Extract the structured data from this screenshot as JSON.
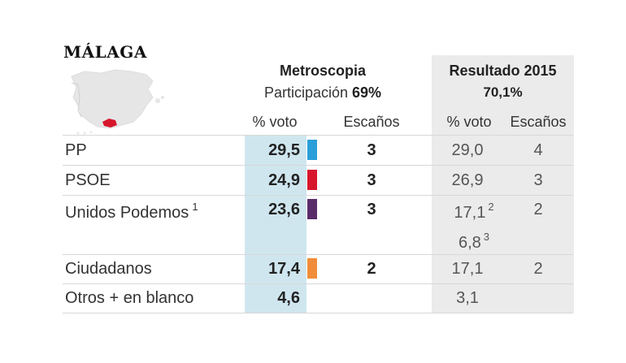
{
  "region": "MÁLAGA",
  "poll": {
    "name": "Metroscopia",
    "participation_label": "Participación",
    "participation_value": "69%"
  },
  "result": {
    "name": "Resultado 2015",
    "participation_value": "70,1%"
  },
  "columns": {
    "vote_pct": "% voto",
    "seats": "Escaños"
  },
  "colors": {
    "pp": "#2a9fd8",
    "psoe": "#d7162c",
    "podemos": "#5a2d69",
    "ciudadanos": "#f08c3a",
    "poll_column_bg": "#cfe6ef",
    "result_column_bg": "#ebebeb",
    "region_highlight": "#d7162c"
  },
  "chart_data": {
    "type": "table",
    "title": "MÁLAGA",
    "rows": [
      {
        "party": "PP",
        "footnote": "",
        "poll_vote": "29,5",
        "poll_seats": "3",
        "result_vote": "29,0",
        "result_vote_note": "",
        "result_vote_2": "",
        "result_vote_2_note": "",
        "result_seats": "4",
        "color": "#2a9fd8"
      },
      {
        "party": "PSOE",
        "footnote": "",
        "poll_vote": "24,9",
        "poll_seats": "3",
        "result_vote": "26,9",
        "result_vote_note": "",
        "result_vote_2": "",
        "result_vote_2_note": "",
        "result_seats": "3",
        "color": "#d7162c"
      },
      {
        "party": "Unidos Podemos",
        "footnote": "1",
        "poll_vote": "23,6",
        "poll_seats": "3",
        "result_vote": "17,1",
        "result_vote_note": "2",
        "result_vote_2": "6,8",
        "result_vote_2_note": "3",
        "result_seats": "2",
        "color": "#5a2d69"
      },
      {
        "party": "Ciudadanos",
        "footnote": "",
        "poll_vote": "17,4",
        "poll_seats": "2",
        "result_vote": "17,1",
        "result_vote_note": "",
        "result_vote_2": "",
        "result_vote_2_note": "",
        "result_seats": "2",
        "color": "#f08c3a"
      },
      {
        "party": "Otros + en blanco",
        "footnote": "",
        "poll_vote": "4,6",
        "poll_seats": "",
        "result_vote": "3,1",
        "result_vote_note": "",
        "result_vote_2": "",
        "result_vote_2_note": "",
        "result_seats": "",
        "color": ""
      }
    ]
  }
}
